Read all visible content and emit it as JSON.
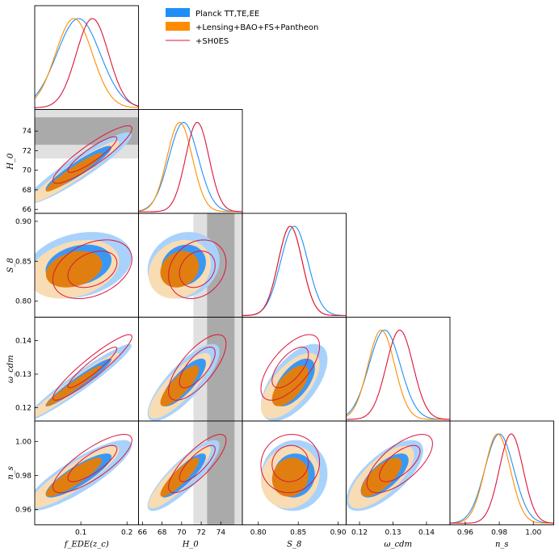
{
  "chart_data": {
    "type": "triangle",
    "parameters": [
      {
        "key": "f",
        "label": "f_EDE(z_c)",
        "ticks": [
          "0.1",
          "0.2"
        ],
        "tick_values": [
          0.1,
          0.2
        ],
        "range": [
          0.0,
          0.225
        ]
      },
      {
        "key": "H0",
        "label": "H_0",
        "ticks": [
          "66",
          "68",
          "70",
          "72",
          "74"
        ],
        "tick_values": [
          66,
          68,
          70,
          72,
          74
        ],
        "range": [
          65.6,
          76.2
        ]
      },
      {
        "key": "S8",
        "label": "S_8",
        "ticks": [
          "0.80",
          "0.85",
          "0.90"
        ],
        "tick_values": [
          0.8,
          0.85,
          0.9
        ],
        "range": [
          0.78,
          0.91
        ]
      },
      {
        "key": "wcdm",
        "label": "ω_cdm",
        "ticks": [
          "0.12",
          "0.13",
          "0.14"
        ],
        "tick_values": [
          0.12,
          0.13,
          0.14
        ],
        "range": [
          0.116,
          0.147
        ]
      },
      {
        "key": "ns",
        "label": "n_s",
        "ticks": [
          "0.96",
          "0.98",
          "1.00"
        ],
        "tick_values": [
          0.96,
          0.98,
          1.0
        ],
        "range": [
          0.951,
          1.012
        ]
      }
    ],
    "series": [
      {
        "name": "Planck TT,TE,EE",
        "color": "#1f8ff7",
        "style": "filled",
        "means": {
          "f": 0.095,
          "H0": 70.2,
          "S8": 0.845,
          "wcdm": 0.1275,
          "ns": 0.98
        },
        "sigmas": {
          "f": 0.047,
          "H0": 1.5,
          "S8": 0.017,
          "wcdm": 0.0047,
          "ns": 0.0085
        }
      },
      {
        "name": "+Lensing+BAO+FS+Pantheon",
        "color": "#ff8c00",
        "style": "filled",
        "means": {
          "f": 0.085,
          "H0": 69.8,
          "S8": 0.84,
          "wcdm": 0.1265,
          "ns": 0.979
        },
        "sigmas": {
          "f": 0.04,
          "H0": 1.3,
          "S8": 0.015,
          "wcdm": 0.004,
          "ns": 0.0075
        }
      },
      {
        "name": "+SH0ES",
        "color": "#dc143c",
        "style": "line",
        "means": {
          "f": 0.125,
          "H0": 71.6,
          "S8": 0.84,
          "wcdm": 0.132,
          "ns": 0.987
        },
        "sigmas": {
          "f": 0.035,
          "H0": 1.2,
          "S8": 0.015,
          "wcdm": 0.004,
          "ns": 0.007
        }
      }
    ],
    "bands": [
      {
        "parameter": "H0",
        "range_1sigma": [
          72.6,
          75.4
        ],
        "range_2sigma": [
          71.2,
          76.8
        ],
        "color_1sigma": "#aaaaaa",
        "color_2sigma": "#e0e0e0"
      }
    ],
    "legend_position": "top-right of empty upper triangle"
  },
  "legend": [
    {
      "label": "Planck TT,TE,EE"
    },
    {
      "label": "+Lensing+BAO+FS+Pantheon"
    },
    {
      "label": "+SH0ES"
    }
  ]
}
